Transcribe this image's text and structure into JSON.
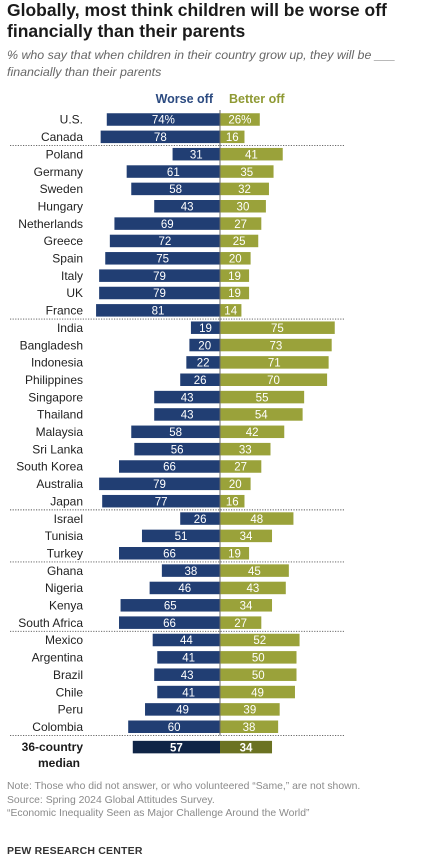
{
  "title": "Globally, most think children will be worse off financially than their parents",
  "subtitle": "% who say that when children in their country grow up, they will be ___ financially than their parents",
  "colors": {
    "worse": "#213e73",
    "better": "#9aa23a",
    "median_worse": "#0f2446",
    "median_better": "#6b7222",
    "worse_label": "#2b4a80",
    "better_label": "#8f9a34"
  },
  "chart_data": {
    "type": "bar",
    "orientation": "horizontal-diverging",
    "series": [
      {
        "name": "Worse off",
        "values": [
          74,
          78,
          31,
          61,
          58,
          43,
          69,
          72,
          75,
          79,
          79,
          81,
          19,
          20,
          22,
          26,
          43,
          43,
          58,
          56,
          66,
          79,
          77,
          26,
          51,
          66,
          38,
          46,
          65,
          66,
          44,
          41,
          43,
          41,
          49,
          60
        ]
      },
      {
        "name": "Better off",
        "values": [
          26,
          16,
          41,
          35,
          32,
          30,
          27,
          25,
          20,
          19,
          19,
          14,
          75,
          73,
          71,
          70,
          55,
          54,
          42,
          33,
          27,
          20,
          16,
          48,
          34,
          19,
          45,
          43,
          34,
          27,
          52,
          50,
          50,
          49,
          39,
          38
        ]
      }
    ],
    "categories": [
      "U.S.",
      "Canada",
      "Poland",
      "Germany",
      "Sweden",
      "Hungary",
      "Netherlands",
      "Greece",
      "Spain",
      "Italy",
      "UK",
      "France",
      "India",
      "Bangladesh",
      "Indonesia",
      "Philippines",
      "Singapore",
      "Thailand",
      "Malaysia",
      "Sri Lanka",
      "South Korea",
      "Australia",
      "Japan",
      "Israel",
      "Tunisia",
      "Turkey",
      "Ghana",
      "Nigeria",
      "Kenya",
      "South Africa",
      "Mexico",
      "Argentina",
      "Brazil",
      "Chile",
      "Peru",
      "Colombia"
    ],
    "groups_end_after": [
      1,
      11,
      22,
      25,
      29
    ],
    "median": {
      "label_line1": "36-country",
      "label_line2": "median",
      "worse": 57,
      "better": 34
    },
    "percent_on_first_row": true
  },
  "notes": {
    "note": "Note: Those who did not answer, or who volunteered “Same,” are not shown.",
    "source": "Source: Spring 2024 Global Attitudes Survey.",
    "report": "“Economic Inequality Seen as Major Challenge Around the World”",
    "credit": "PEW RESEARCH CENTER"
  }
}
